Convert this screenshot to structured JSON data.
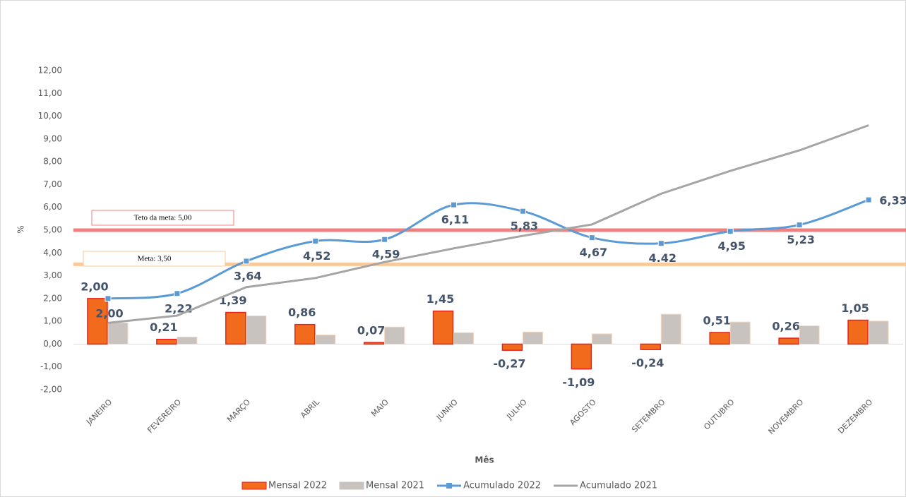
{
  "chart_data": {
    "type": "bar-line",
    "x_label": "Mês",
    "y_label": "%",
    "categories": [
      "JANEIRO",
      "FEVEREIRO",
      "MARÇO",
      "ABRIL",
      "MAIO",
      "JUNHO",
      "JULHO",
      "AGOSTO",
      "SETEMBRO",
      "OUTUBRO",
      "NOVEMBRO",
      "DEZEMBRO"
    ],
    "series": [
      {
        "name": "Mensal 2022",
        "kind": "bar",
        "color": "#f26b1d",
        "values": [
          2.0,
          0.21,
          1.39,
          0.86,
          0.07,
          1.45,
          -0.27,
          -1.09,
          -0.24,
          0.51,
          0.26,
          1.05
        ],
        "value_labels": [
          "2,00",
          "0,21",
          "1,39",
          "0,86",
          "0,07",
          "1,45",
          "-0,27",
          "-1,09",
          "-0,24",
          "0,51",
          "0,26",
          "1,05"
        ]
      },
      {
        "name": "Mensal 2021",
        "kind": "bar",
        "color": "#c9c3bf",
        "values": [
          0.93,
          0.31,
          1.24,
          0.4,
          0.75,
          0.5,
          0.53,
          0.45,
          1.31,
          0.97,
          0.8,
          1.01
        ]
      },
      {
        "name": "Acumulado 2022",
        "kind": "line",
        "color": "#5b9bd5",
        "values": [
          2.0,
          2.22,
          3.64,
          4.52,
          4.59,
          6.11,
          5.83,
          4.67,
          4.42,
          4.95,
          5.23,
          6.33
        ],
        "value_labels": [
          "2,00",
          "2,22",
          "3,64",
          "4,52",
          "4,59",
          "6,11",
          "5,83",
          "4,67",
          "4.42",
          "4,95",
          "5,23",
          "6,33"
        ]
      },
      {
        "name": "Acumulado 2021",
        "kind": "line",
        "color": "#a5a5a5",
        "values": [
          0.93,
          1.25,
          2.5,
          2.9,
          3.6,
          4.2,
          4.75,
          5.25,
          6.6,
          7.6,
          8.5,
          9.6
        ]
      }
    ],
    "reference_lines": [
      {
        "label": "Teto da meta: 5,00",
        "value": 5.0,
        "color": "#f08080"
      },
      {
        "label": "Meta: 3,50",
        "value": 3.5,
        "color": "#f8c99a"
      }
    ],
    "ylim": [
      -2,
      12
    ],
    "yticks": [
      {
        "value": -2,
        "label": "-2,00"
      },
      {
        "value": -1,
        "label": "-1,00"
      },
      {
        "value": 0,
        "label": "0,00"
      },
      {
        "value": 1,
        "label": "1,00"
      },
      {
        "value": 2,
        "label": "2,00"
      },
      {
        "value": 3,
        "label": "3,00"
      },
      {
        "value": 4,
        "label": "4,00"
      },
      {
        "value": 5,
        "label": "5,00"
      },
      {
        "value": 6,
        "label": "6,00"
      },
      {
        "value": 7,
        "label": "7,00"
      },
      {
        "value": 8,
        "label": "8,00"
      },
      {
        "value": 9,
        "label": "9,00"
      },
      {
        "value": 10,
        "label": "10,00"
      },
      {
        "value": 11,
        "label": "11,00"
      },
      {
        "value": 12,
        "label": "12,00"
      }
    ],
    "grid": false,
    "legend": "bottom"
  }
}
